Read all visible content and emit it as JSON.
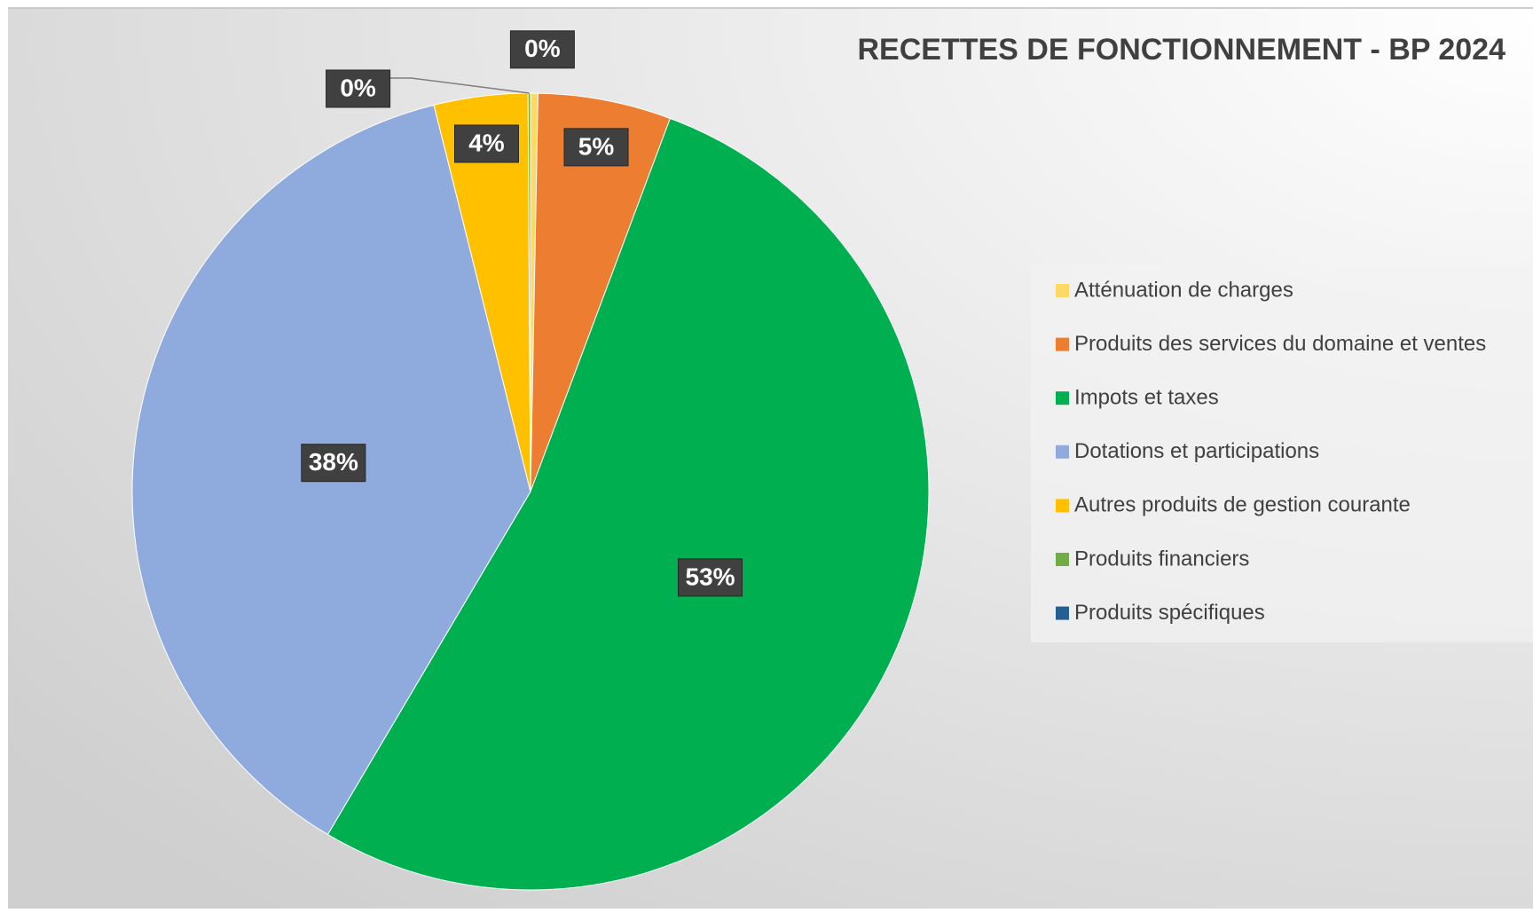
{
  "chart_data": {
    "type": "pie",
    "title": "RECETTES DE FONCTIONNEMENT - BP 2024",
    "categories": [
      "Atténuation de charges",
      "Produits des services du domaine et ventes",
      "Impots et taxes",
      "Dotations et participations",
      "Autres produits de gestion courante",
      "Produits financiers",
      "Produits spécifiques"
    ],
    "values": [
      0.3,
      5.4,
      52.8,
      37.6,
      3.8,
      0.1,
      0
    ],
    "value_labels": [
      "0%",
      "5%",
      "53%",
      "38%",
      "4%",
      "0%",
      null
    ],
    "colors": [
      "#ffd966",
      "#ed7d31",
      "#00b050",
      "#8faadc",
      "#ffc000",
      "#70ad47",
      "#255e91"
    ],
    "legend": "right"
  }
}
